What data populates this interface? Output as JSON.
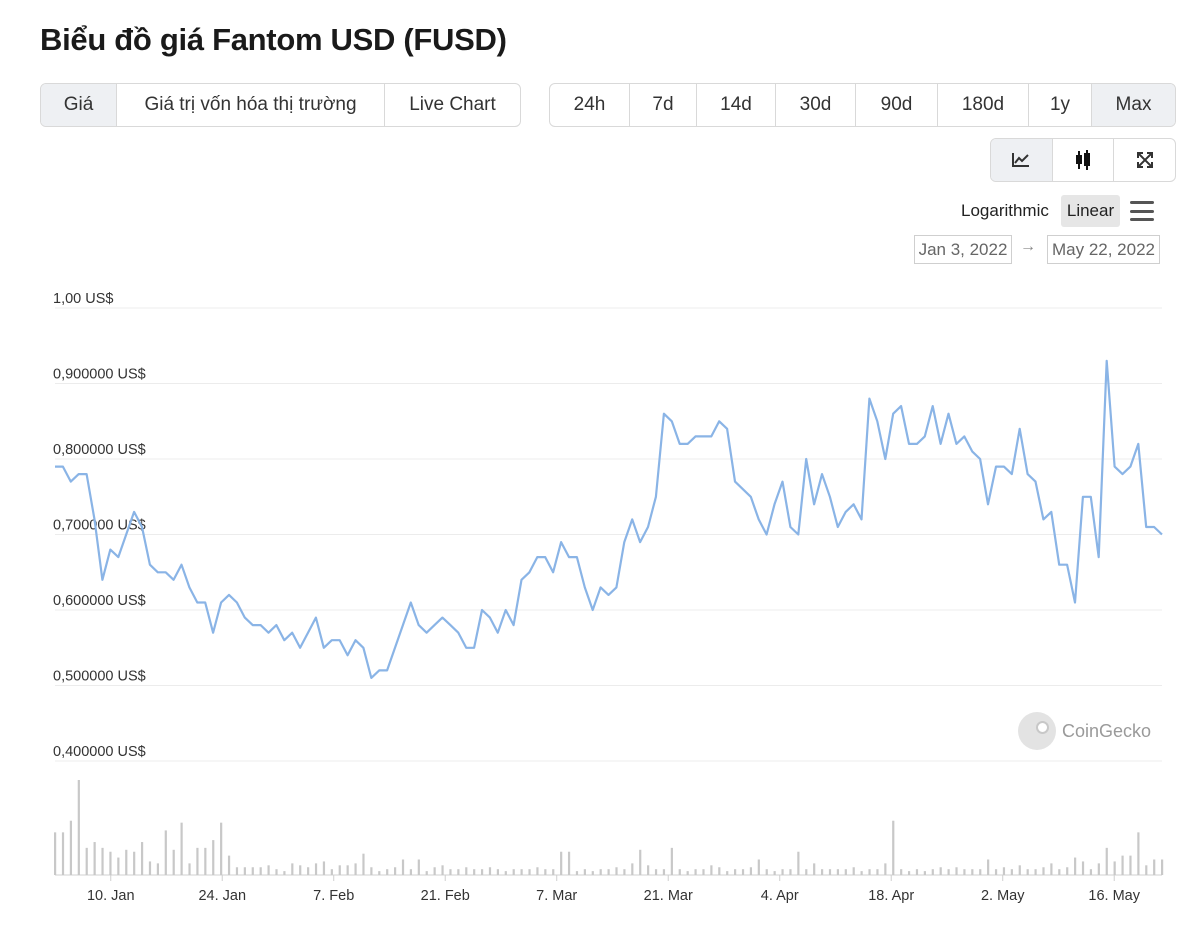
{
  "page": {
    "title": "Biểu đồ giá Fantom USD (FUSD)"
  },
  "view_tabs": [
    {
      "label": "Giá",
      "active": true
    },
    {
      "label": "Giá trị vốn hóa thị trường",
      "active": false
    },
    {
      "label": "Live Chart",
      "active": false
    }
  ],
  "range_tabs": [
    {
      "label": "24h",
      "active": false
    },
    {
      "label": "7d",
      "active": false
    },
    {
      "label": "14d",
      "active": false
    },
    {
      "label": "30d",
      "active": false
    },
    {
      "label": "90d",
      "active": false
    },
    {
      "label": "180d",
      "active": false
    },
    {
      "label": "1y",
      "active": false
    },
    {
      "label": "Max",
      "active": true
    }
  ],
  "chart_type_buttons": [
    {
      "icon": "line-chart-icon",
      "active": true
    },
    {
      "icon": "candlestick-icon",
      "active": false
    },
    {
      "icon": "expand-icon",
      "active": false
    }
  ],
  "scale": {
    "logarithmic": "Logarithmic",
    "linear": "Linear",
    "active": "linear",
    "menu_icon": "hamburger-menu-icon"
  },
  "date_range": {
    "from": "Jan 3, 2022",
    "arrow": "→",
    "to": "May 22, 2022"
  },
  "watermark": {
    "text": "CoinGecko",
    "icon": "coingecko-logo-icon"
  },
  "colors": {
    "line": "#8ab4e6",
    "volume": "#c8c8c8",
    "grid": "#ececec",
    "active_bg": "#eef0f3"
  },
  "chart_data": {
    "type": "line",
    "title": "",
    "x_start": "2022-01-03",
    "x_end": "2022-05-22",
    "ylim": [
      0.4,
      1.0
    ],
    "y_tick_values": [
      1.0,
      0.9,
      0.8,
      0.7,
      0.6,
      0.5,
      0.4
    ],
    "y_tick_labels": [
      "1,00 US$",
      "0,900000 US$",
      "0,800000 US$",
      "0,700000 US$",
      "0,600000 US$",
      "0,500000 US$",
      "0,400000 US$"
    ],
    "x_tick_dates": [
      "2022-01-10",
      "2022-01-24",
      "2022-02-07",
      "2022-02-21",
      "2022-03-07",
      "2022-03-21",
      "2022-04-04",
      "2022-04-18",
      "2022-05-02",
      "2022-05-16"
    ],
    "x_tick_labels": [
      "10. Jan",
      "24. Jan",
      "7. Feb",
      "21. Feb",
      "7. Mar",
      "21. Mar",
      "4. Apr",
      "18. Apr",
      "2. May",
      "16. May"
    ],
    "grid": true,
    "series": [
      {
        "values": [
          0.79,
          0.79,
          0.77,
          0.78,
          0.78,
          0.72,
          0.64,
          0.68,
          0.67,
          0.7,
          0.73,
          0.71,
          0.66,
          0.65,
          0.65,
          0.64,
          0.66,
          0.63,
          0.61,
          0.61,
          0.57,
          0.61,
          0.62,
          0.61,
          0.59,
          0.58,
          0.58,
          0.57,
          0.58,
          0.56,
          0.57,
          0.55,
          0.57,
          0.59,
          0.55,
          0.56,
          0.56,
          0.54,
          0.56,
          0.55,
          0.51,
          0.52,
          0.52,
          0.55,
          0.58,
          0.61,
          0.58,
          0.57,
          0.58,
          0.59,
          0.58,
          0.57,
          0.55,
          0.55,
          0.6,
          0.59,
          0.57,
          0.6,
          0.58,
          0.64,
          0.65,
          0.67,
          0.67,
          0.65,
          0.69,
          0.67,
          0.67,
          0.63,
          0.6,
          0.63,
          0.62,
          0.63,
          0.69,
          0.72,
          0.69,
          0.71,
          0.75,
          0.86,
          0.85,
          0.82,
          0.82,
          0.83,
          0.83,
          0.83,
          0.85,
          0.84,
          0.77,
          0.76,
          0.75,
          0.72,
          0.7,
          0.74,
          0.77,
          0.71,
          0.7,
          0.8,
          0.74,
          0.78,
          0.75,
          0.71,
          0.73,
          0.74,
          0.72,
          0.88,
          0.85,
          0.8,
          0.86,
          0.87,
          0.82,
          0.82,
          0.83,
          0.87,
          0.82,
          0.86,
          0.82,
          0.83,
          0.81,
          0.8,
          0.74,
          0.79,
          0.79,
          0.78,
          0.84,
          0.78,
          0.77,
          0.72,
          0.73,
          0.66,
          0.66,
          0.61,
          0.75,
          0.75,
          0.67,
          0.93,
          0.79,
          0.78,
          0.79,
          0.82,
          0.71,
          0.71,
          0.7
        ]
      }
    ],
    "volume": [
      0.22,
      0.22,
      0.28,
      0.49,
      0.14,
      0.17,
      0.14,
      0.12,
      0.09,
      0.13,
      0.12,
      0.17,
      0.07,
      0.06,
      0.23,
      0.13,
      0.27,
      0.06,
      0.14,
      0.14,
      0.18,
      0.27,
      0.1,
      0.04,
      0.04,
      0.04,
      0.04,
      0.05,
      0.03,
      0.02,
      0.06,
      0.05,
      0.04,
      0.06,
      0.07,
      0.03,
      0.05,
      0.05,
      0.06,
      0.11,
      0.04,
      0.02,
      0.03,
      0.04,
      0.08,
      0.03,
      0.08,
      0.02,
      0.04,
      0.05,
      0.03,
      0.03,
      0.04,
      0.03,
      0.03,
      0.04,
      0.03,
      0.02,
      0.03,
      0.03,
      0.03,
      0.04,
      0.03,
      0.03,
      0.12,
      0.12,
      0.02,
      0.03,
      0.02,
      0.03,
      0.03,
      0.04,
      0.03,
      0.06,
      0.13,
      0.05,
      0.03,
      0.03,
      0.14,
      0.03,
      0.02,
      0.03,
      0.03,
      0.05,
      0.04,
      0.02,
      0.03,
      0.03,
      0.04,
      0.08,
      0.03,
      0.02,
      0.03,
      0.03,
      0.12,
      0.03,
      0.06,
      0.03,
      0.03,
      0.03,
      0.03,
      0.04,
      0.02,
      0.03,
      0.03,
      0.06,
      0.28,
      0.03,
      0.02,
      0.03,
      0.02,
      0.03,
      0.04,
      0.03,
      0.04,
      0.03,
      0.03,
      0.03,
      0.08,
      0.03,
      0.04,
      0.03,
      0.05,
      0.03,
      0.03,
      0.04,
      0.06,
      0.03,
      0.04,
      0.09,
      0.07,
      0.03,
      0.06,
      0.14,
      0.07,
      0.1,
      0.1,
      0.22,
      0.05,
      0.08,
      0.08
    ]
  }
}
